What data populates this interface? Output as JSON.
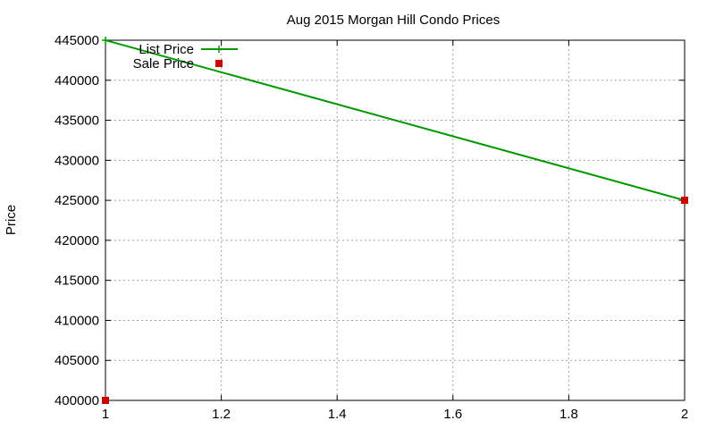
{
  "chart_data": {
    "type": "line",
    "title": "Aug 2015 Morgan Hill Condo Prices",
    "xlabel": "",
    "ylabel": "Price",
    "xlim": [
      1,
      2
    ],
    "ylim": [
      400000,
      445000
    ],
    "xticks": [
      "1",
      "1.2",
      "1.4",
      "1.6",
      "1.8",
      "2"
    ],
    "yticks": [
      "400000",
      "405000",
      "410000",
      "415000",
      "420000",
      "425000",
      "430000",
      "435000",
      "440000",
      "445000"
    ],
    "grid": true,
    "legend_position": "top-left",
    "series": [
      {
        "name": "List Price",
        "style": "line-with-plus-markers",
        "color": "#009900",
        "points": [
          [
            1,
            445000
          ],
          [
            2,
            425000
          ]
        ]
      },
      {
        "name": "Sale Price",
        "style": "square-markers",
        "color": "#cc0000",
        "points": [
          [
            1,
            400000
          ],
          [
            2,
            425000
          ]
        ]
      }
    ]
  }
}
